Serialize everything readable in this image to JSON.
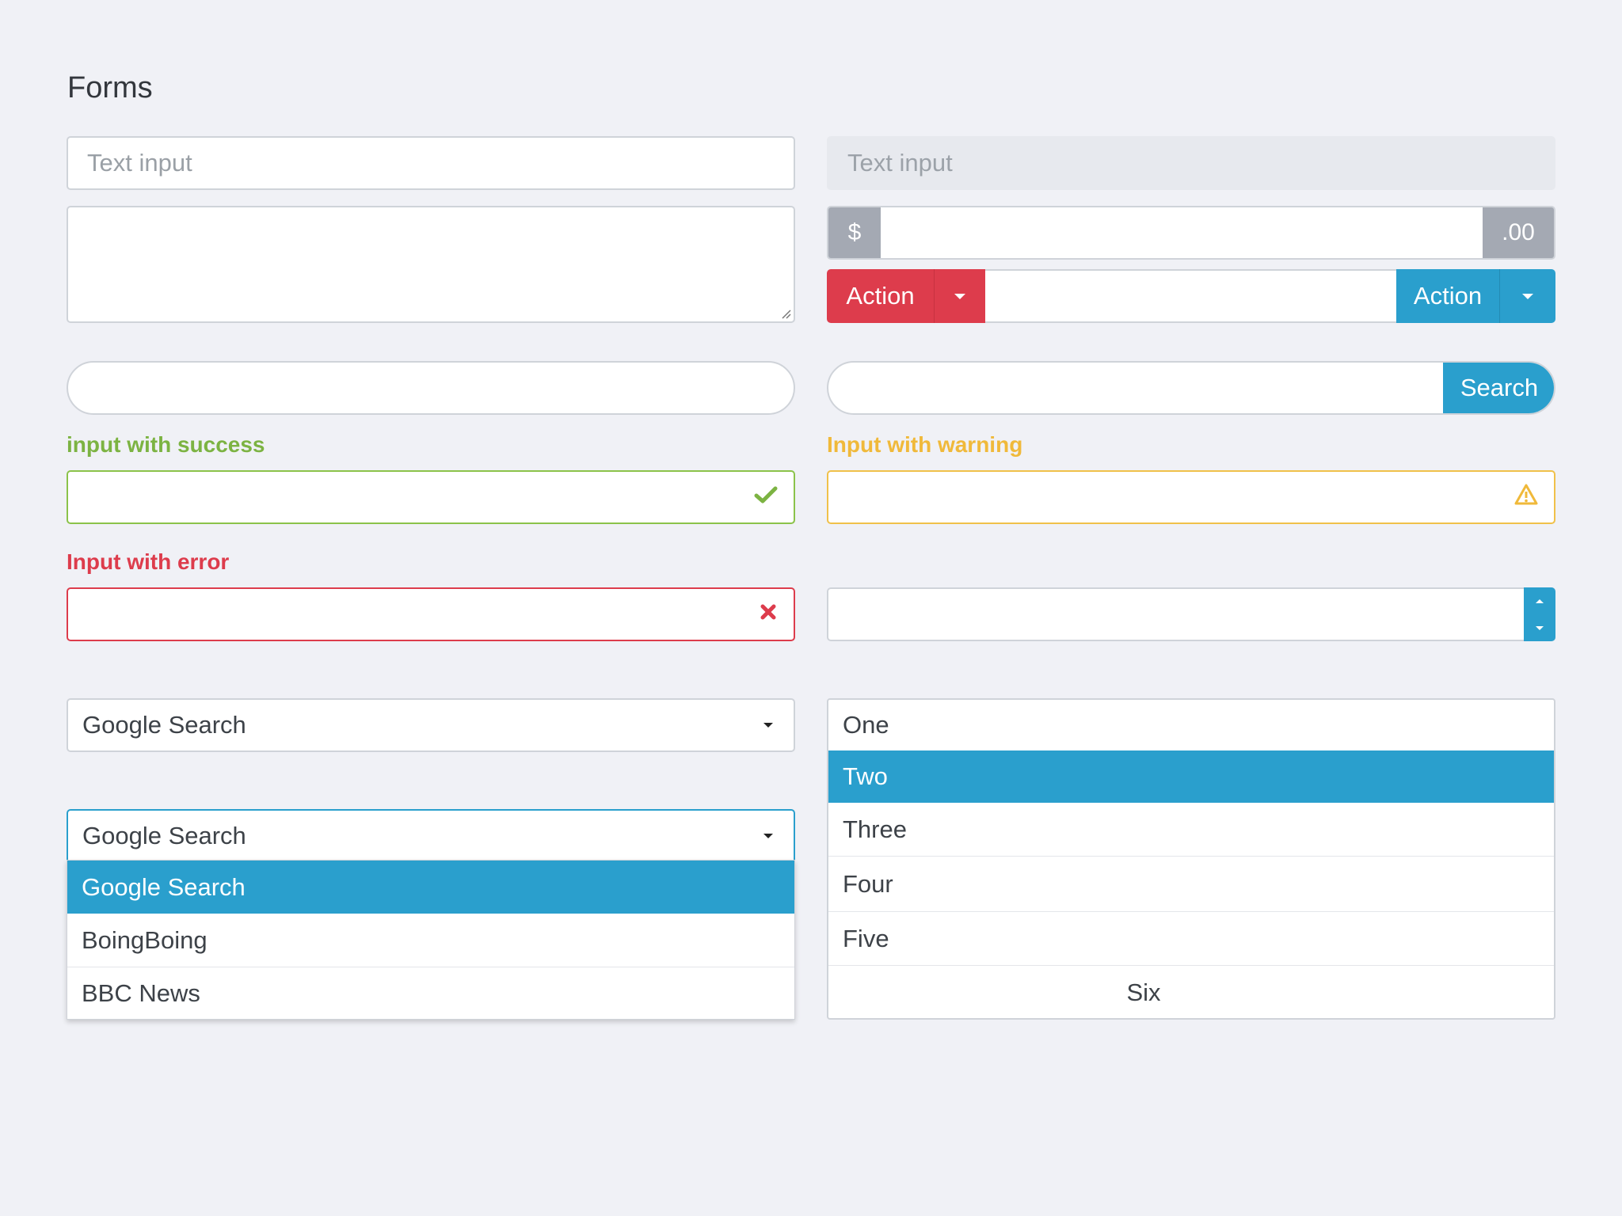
{
  "page": {
    "title": "Forms"
  },
  "inputs": {
    "text_placeholder": "Text input",
    "disabled_placeholder": "Text input"
  },
  "input_group": {
    "prefix": "$",
    "suffix": ".00"
  },
  "action_group": {
    "left_label": "Action",
    "right_label": "Action"
  },
  "search": {
    "button_label": "Search"
  },
  "states": {
    "success_label": "input with success",
    "warning_label": "Input with warning",
    "error_label": "Input with error"
  },
  "select_closed": {
    "value": "Google Search"
  },
  "select_open": {
    "value": "Google Search",
    "options": [
      "Google Search",
      "BoingBoing",
      "BBC News"
    ]
  },
  "listbox": {
    "options": [
      "One",
      "Two",
      "Three",
      "Four",
      "Five",
      "Six"
    ]
  },
  "colors": {
    "primary": "#2a9fcd",
    "danger": "#dd3c4c",
    "success": "#7cb342",
    "warning": "#f0b93a",
    "addon": "#a4a9b3"
  }
}
